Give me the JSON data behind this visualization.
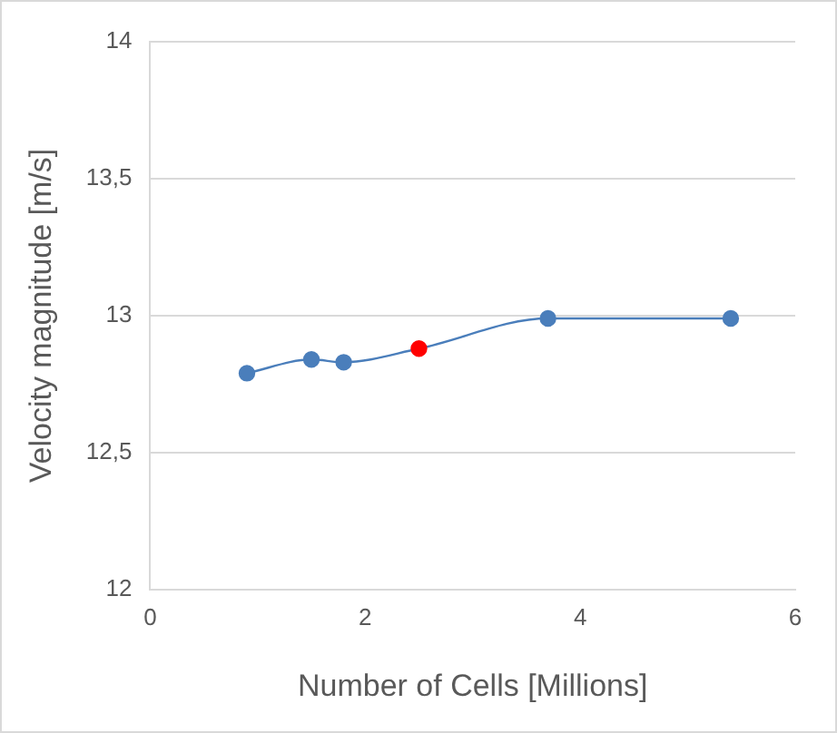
{
  "chart_data": {
    "type": "line",
    "xlabel": "Number of Cells [Millions]",
    "ylabel": "Velocity magnitude [m/s]",
    "x": [
      0.9,
      1.5,
      1.8,
      2.5,
      3.7,
      5.4
    ],
    "series": [
      {
        "color": "#4a7ebb",
        "colors": [
          "#4a7ebb",
          "#4a7ebb",
          "#4a7ebb",
          "#ff0000",
          "#4a7ebb",
          "#4a7ebb"
        ],
        "values": [
          12.79,
          12.84,
          12.83,
          12.88,
          12.99,
          12.99
        ]
      }
    ],
    "xlim": [
      0,
      6
    ],
    "xticks": [
      0,
      2,
      4,
      6
    ],
    "ylim": [
      12,
      14
    ],
    "yticks": [
      12,
      {
        "value": 12.5,
        "label": "12,5"
      },
      13,
      {
        "value": 13.5,
        "label": "13,5"
      },
      14
    ],
    "grid": "y",
    "legend": false,
    "marker": "circle"
  }
}
